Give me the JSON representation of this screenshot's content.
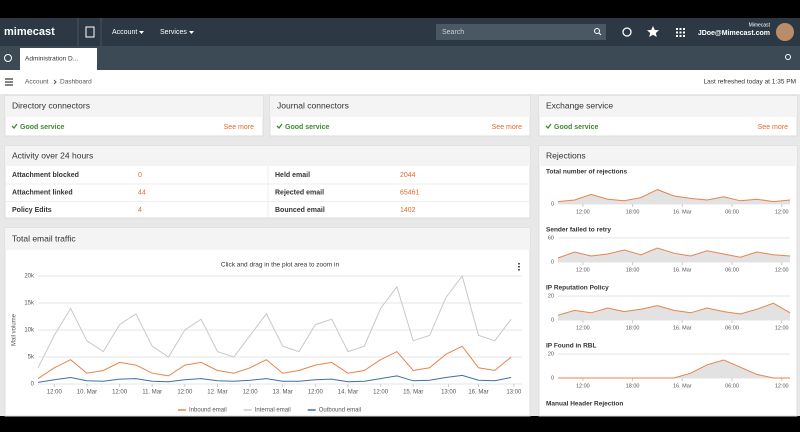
{
  "header": {
    "logo": "mimecast",
    "menu": [
      "Account",
      "Services"
    ],
    "search_placeholder": "Search",
    "user_org": "Mimecast",
    "user_email": "JDoe@Mimecast.com"
  },
  "tab": {
    "title": "Administration D..."
  },
  "breadcrumb": {
    "items": [
      "Account",
      "Dashboard"
    ],
    "refreshed": "Last refreshed today at 1:35 PM"
  },
  "services": [
    {
      "title": "Directory connectors",
      "status": "Good service",
      "link": "See more"
    },
    {
      "title": "Journal connectors",
      "status": "Good service",
      "link": "See more"
    },
    {
      "title": "Exchange service",
      "status": "Good service",
      "link": "See more"
    }
  ],
  "activity": {
    "title": "Activity over 24 hours",
    "rows": [
      [
        "Attachment blocked",
        0,
        "Held email",
        2044
      ],
      [
        "Attachment linked",
        44,
        "Rejected email",
        65461
      ],
      [
        "Policy Edits",
        4,
        "Bounced email",
        1402
      ]
    ]
  },
  "panels": {
    "traffic": "Total email traffic",
    "rejections": "Rejections"
  },
  "chart_data": [
    {
      "type": "line",
      "subtitle": "Click and drag in the plot area to zoom in",
      "y_label": "Mail volume",
      "legend": "bottom",
      "x": [
        6,
        12,
        18,
        24,
        30,
        36,
        42,
        48,
        54,
        60,
        66,
        72,
        78,
        84,
        90,
        96,
        102,
        108,
        114,
        120,
        126,
        132,
        138,
        144,
        150,
        156,
        162,
        168,
        174,
        180
      ],
      "xlim": [
        6,
        184
      ],
      "ylim": [
        0,
        20000
      ],
      "xticks": [
        {
          "value": 12,
          "label": "12:00"
        },
        {
          "value": 24,
          "label": "10. Mar"
        },
        {
          "value": 36,
          "label": "12:00"
        },
        {
          "value": 48,
          "label": "11. Mar"
        },
        {
          "value": 60,
          "label": "12:00"
        },
        {
          "value": 72,
          "label": "12. Mar"
        },
        {
          "value": 84,
          "label": "12:00"
        },
        {
          "value": 96,
          "label": "13. Mar"
        },
        {
          "value": 108,
          "label": "12:00"
        },
        {
          "value": 120,
          "label": "14. Mar"
        },
        {
          "value": 132,
          "label": "12:00"
        },
        {
          "value": 144,
          "label": "15. Mar"
        },
        {
          "value": 157,
          "label": "13:00"
        },
        {
          "value": 168,
          "label": "16. Mar"
        },
        {
          "value": 181,
          "label": "13:00"
        }
      ],
      "yticks": [
        0,
        {
          "value": 5000,
          "label": "5k"
        },
        {
          "value": 10000,
          "label": "10k"
        },
        {
          "value": 15000,
          "label": "15k"
        },
        {
          "value": 20000,
          "label": "20k"
        }
      ],
      "series": [
        {
          "name": "Inbound email",
          "color": "#e8834a",
          "values": [
            1000,
            3000,
            4500,
            2000,
            2500,
            4000,
            3500,
            2000,
            1500,
            3500,
            4000,
            2500,
            2000,
            3000,
            4500,
            2000,
            2500,
            3500,
            4000,
            2000,
            2500,
            4500,
            6000,
            2500,
            3000,
            5500,
            7000,
            3000,
            2500,
            5000
          ]
        },
        {
          "name": "Internal email",
          "color": "#c8c8c8",
          "values": [
            3000,
            9000,
            14000,
            8000,
            6000,
            11000,
            13000,
            7000,
            5000,
            10000,
            12000,
            6000,
            5000,
            9000,
            13000,
            7000,
            6000,
            11000,
            12000,
            6000,
            7000,
            14000,
            18000,
            8000,
            9000,
            16000,
            20000,
            9000,
            8000,
            12000
          ]
        },
        {
          "name": "Outbound email",
          "color": "#3d6fa8",
          "values": [
            300,
            800,
            1200,
            600,
            500,
            900,
            1000,
            500,
            400,
            800,
            1000,
            600,
            500,
            700,
            1000,
            500,
            500,
            800,
            900,
            400,
            500,
            1000,
            1500,
            600,
            700,
            1200,
            1600,
            700,
            600,
            1200
          ]
        }
      ]
    },
    {
      "type": "line",
      "title": "Total number of rejections",
      "x": [
        9,
        11,
        13,
        15,
        17,
        19,
        21,
        23,
        25,
        27,
        29,
        31,
        33,
        35,
        37
      ],
      "xlim": [
        9,
        37
      ],
      "ylim": [
        0,
        30
      ],
      "yticks": [
        0
      ],
      "xticks": [
        {
          "value": 12,
          "label": "12:00"
        },
        {
          "value": 18,
          "label": "18:00"
        },
        {
          "value": 24,
          "label": "16. Mar"
        },
        {
          "value": 30,
          "label": "06:00"
        },
        {
          "value": 36,
          "label": "12:00"
        }
      ],
      "series": [
        {
          "color": "#e8834a",
          "values": [
            3,
            5,
            12,
            6,
            4,
            8,
            18,
            10,
            7,
            5,
            9,
            4,
            6,
            3,
            5
          ]
        }
      ]
    },
    {
      "type": "line",
      "title": "Sender failed to retry",
      "x": [
        9,
        11,
        13,
        15,
        17,
        19,
        21,
        23,
        25,
        27,
        29,
        31,
        33,
        35,
        37
      ],
      "xlim": [
        9,
        37
      ],
      "ylim": [
        0,
        60
      ],
      "yticks": [
        0,
        60
      ],
      "xticks": [
        {
          "value": 12,
          "label": "12:00"
        },
        {
          "value": 18,
          "label": "18:00"
        },
        {
          "value": 24,
          "label": "16. Mar"
        },
        {
          "value": 30,
          "label": "06:00"
        },
        {
          "value": 36,
          "label": "12:00"
        }
      ],
      "series": [
        {
          "color": "#e8834a",
          "values": [
            10,
            25,
            15,
            20,
            30,
            18,
            35,
            22,
            15,
            28,
            20,
            12,
            25,
            18,
            15
          ]
        }
      ]
    },
    {
      "type": "line",
      "title": "IP Reputation Policy",
      "x": [
        9,
        11,
        13,
        15,
        17,
        19,
        21,
        23,
        25,
        27,
        29,
        31,
        33,
        35,
        37
      ],
      "xlim": [
        9,
        37
      ],
      "ylim": [
        0,
        20
      ],
      "yticks": [
        0,
        20
      ],
      "xticks": [
        {
          "value": 12,
          "label": "12:00"
        },
        {
          "value": 18,
          "label": "18:00"
        },
        {
          "value": 24,
          "label": "16. Mar"
        },
        {
          "value": 30,
          "label": "06:00"
        },
        {
          "value": 36,
          "label": "12:00"
        }
      ],
      "series": [
        {
          "color": "#e8834a",
          "values": [
            4,
            8,
            6,
            10,
            7,
            9,
            12,
            8,
            6,
            10,
            7,
            5,
            9,
            14,
            6
          ]
        }
      ]
    },
    {
      "type": "line",
      "title": "IP Found in RBL",
      "x": [
        9,
        11,
        13,
        15,
        17,
        19,
        21,
        23,
        25,
        27,
        29,
        31,
        33,
        35,
        37
      ],
      "xlim": [
        9,
        37
      ],
      "ylim": [
        0,
        20
      ],
      "yticks": [
        0,
        20
      ],
      "xticks": [
        {
          "value": 12,
          "label": "12:00"
        },
        {
          "value": 18,
          "label": "18:00"
        },
        {
          "value": 24,
          "label": "16. Mar"
        },
        {
          "value": 30,
          "label": "06:00"
        },
        {
          "value": 36,
          "label": "12:00"
        }
      ],
      "series": [
        {
          "color": "#e8834a",
          "values": [
            0,
            0,
            0,
            0,
            0,
            0,
            0,
            0,
            4,
            11,
            15,
            9,
            3,
            0,
            0
          ]
        }
      ]
    },
    {
      "type": "line",
      "title": "Manual Header Rejection"
    }
  ]
}
